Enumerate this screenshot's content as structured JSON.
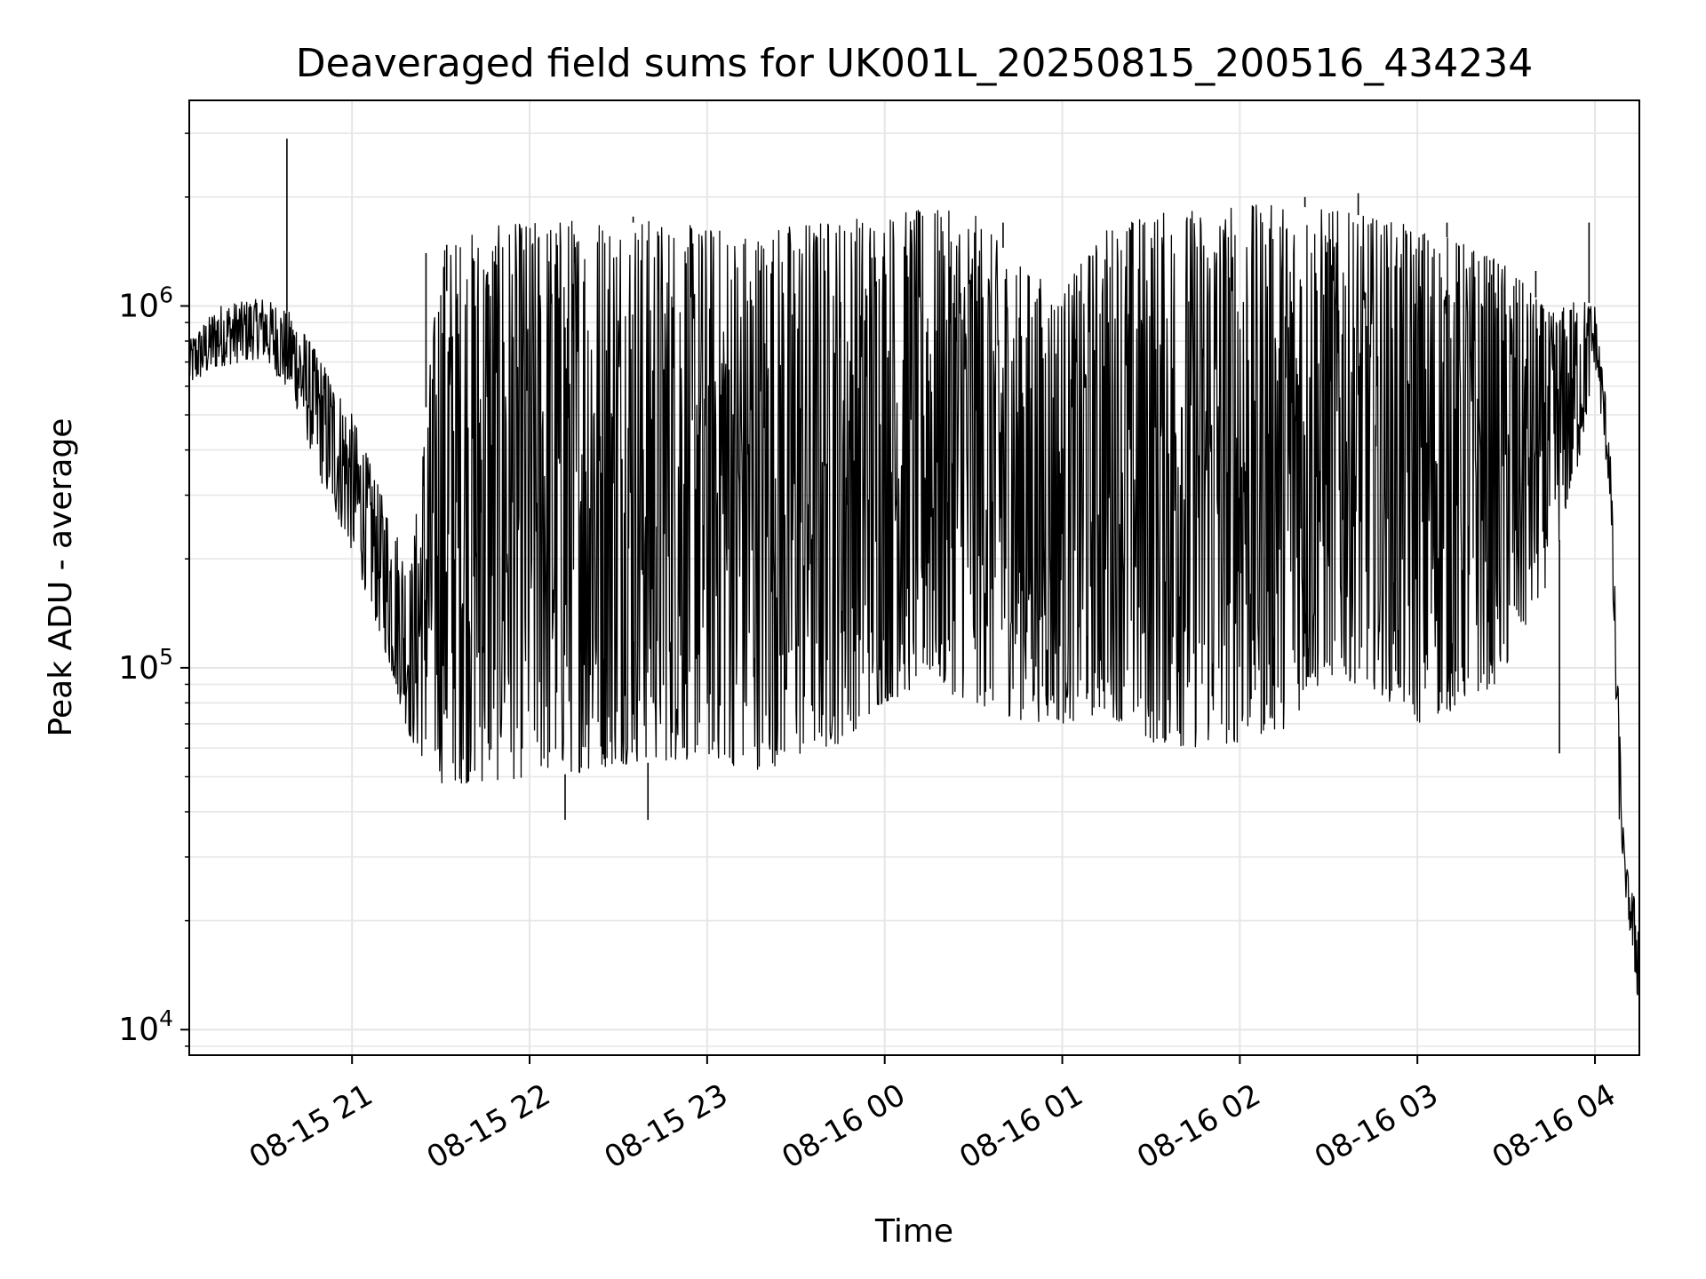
{
  "chart_data": {
    "type": "line",
    "title": "Deaveraged field sums for UK001L_20250815_200516_434234",
    "xlabel": "Time",
    "ylabel": "Peak ADU - average",
    "yscale": "log",
    "ylim": [
      8500,
      3700000
    ],
    "xlim": [
      "2025-08-15 20:05",
      "2025-08-16 04:15"
    ],
    "grid": true,
    "line_color": "#000000",
    "grid_color": "#e6e6e6",
    "x_ticks": [
      {
        "time": "2025-08-15 21:00",
        "label": "08-15 21"
      },
      {
        "time": "2025-08-15 22:00",
        "label": "08-15 22"
      },
      {
        "time": "2025-08-15 23:00",
        "label": "08-15 23"
      },
      {
        "time": "2025-08-16 00:00",
        "label": "08-16 00"
      },
      {
        "time": "2025-08-16 01:00",
        "label": "08-16 01"
      },
      {
        "time": "2025-08-16 02:00",
        "label": "08-16 02"
      },
      {
        "time": "2025-08-16 03:00",
        "label": "08-16 03"
      },
      {
        "time": "2025-08-16 04:00",
        "label": "08-16 04"
      }
    ],
    "y_ticks": [
      {
        "value": 10000,
        "base": "10",
        "exp": "4"
      },
      {
        "value": 100000,
        "base": "10",
        "exp": "5"
      },
      {
        "value": 1000000,
        "base": "10",
        "exp": "6"
      }
    ],
    "series": [
      {
        "envelope": {
          "time": [
            "2025-08-15 20:05",
            "2025-08-15 20:15",
            "2025-08-15 20:30",
            "2025-08-15 20:40",
            "2025-08-15 20:50",
            "2025-08-15 21:00",
            "2025-08-15 21:10",
            "2025-08-15 21:20",
            "2025-08-15 21:30",
            "2025-08-15 21:45",
            "2025-08-15 22:00",
            "2025-08-15 22:15",
            "2025-08-15 22:30",
            "2025-08-15 22:45",
            "2025-08-15 23:00",
            "2025-08-15 23:15",
            "2025-08-15 23:30",
            "2025-08-15 23:45",
            "2025-08-16 00:00",
            "2025-08-16 00:15",
            "2025-08-16 00:30",
            "2025-08-16 00:45",
            "2025-08-16 01:00",
            "2025-08-16 01:15",
            "2025-08-16 01:30",
            "2025-08-16 01:45",
            "2025-08-16 02:00",
            "2025-08-16 02:15",
            "2025-08-16 02:30",
            "2025-08-16 02:45",
            "2025-08-16 03:00",
            "2025-08-16 03:15",
            "2025-08-16 03:30",
            "2025-08-16 03:45",
            "2025-08-16 03:55",
            "2025-08-16 04:00",
            "2025-08-16 04:05",
            "2025-08-16 04:08",
            "2025-08-16 04:10",
            "2025-08-16 04:12",
            "2025-08-16 04:15"
          ],
          "low": [
            600000,
            680000,
            720000,
            560000,
            320000,
            210000,
            120000,
            62000,
            48000,
            48000,
            50000,
            51000,
            54000,
            55000,
            56000,
            52000,
            55000,
            62000,
            80000,
            90000,
            80000,
            72000,
            70000,
            75000,
            62000,
            60000,
            62000,
            68000,
            95000,
            88000,
            70000,
            78000,
            95000,
            180000,
            380000,
            700000,
            300000,
            40000,
            25000,
            18000,
            11000
          ],
          "high": [
            800000,
            1000000,
            1050000,
            950000,
            700000,
            500000,
            300000,
            190000,
            1450000,
            1650000,
            1700000,
            1750000,
            1800000,
            1700000,
            1650000,
            1600000,
            1700000,
            1750000,
            1800000,
            1850000,
            1800000,
            1300000,
            1100000,
            1650000,
            1800000,
            1850000,
            1900000,
            1900000,
            1850000,
            1750000,
            1650000,
            1500000,
            1300000,
            950000,
            1050000,
            1000000,
            450000,
            80000,
            30000,
            25000,
            21000
          ]
        },
        "spikes": [
          {
            "time": "2025-08-15 20:38",
            "value": 2900000
          },
          {
            "time": "2025-08-15 21:25",
            "value": 1400000
          },
          {
            "time": "2025-08-15 21:32",
            "value": 1100000
          },
          {
            "time": "2025-08-15 22:35",
            "value": 1700000
          },
          {
            "time": "2025-08-16 00:40",
            "value": 1700000
          },
          {
            "time": "2025-08-16 02:22",
            "value": 2000000
          },
          {
            "time": "2025-08-16 02:40",
            "value": 2050000
          },
          {
            "time": "2025-08-16 03:10",
            "value": 1700000
          },
          {
            "time": "2025-08-16 03:40",
            "value": 1250000
          },
          {
            "time": "2025-08-16 03:58",
            "value": 1700000
          }
        ],
        "dips": [
          {
            "time": "2025-08-15 22:12",
            "value": 38000
          },
          {
            "time": "2025-08-15 22:40",
            "value": 38000
          },
          {
            "time": "2025-08-16 03:48",
            "value": 58000
          },
          {
            "time": "2025-08-16 04:15",
            "value": 11000
          }
        ]
      }
    ]
  }
}
